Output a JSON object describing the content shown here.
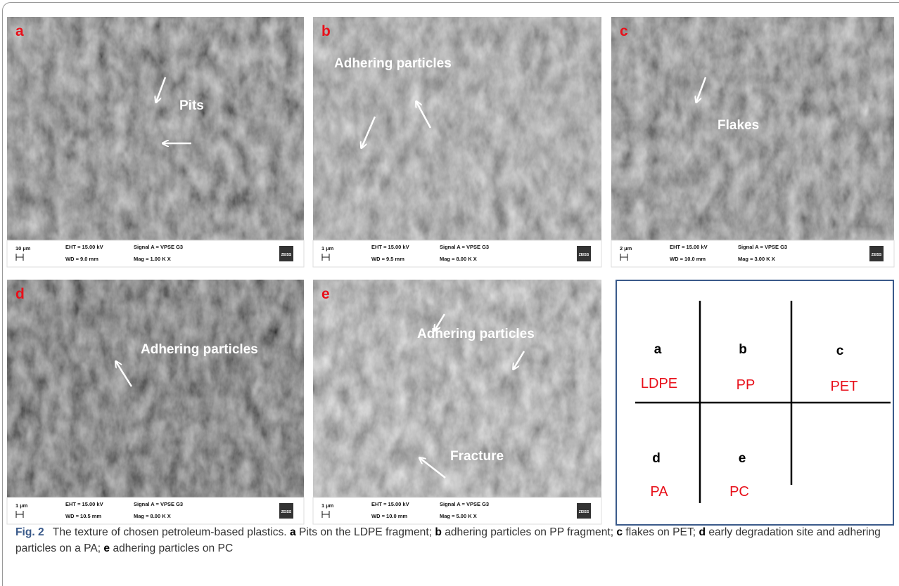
{
  "panels": [
    {
      "letter": "a",
      "annotations": [
        "Pits"
      ],
      "scale": "10 µm",
      "eht": "EHT = 15.00 kV",
      "wd": "WD =  9.0 mm",
      "signal": "Signal A = VPSE G3",
      "mag": "Mag =   1.00 K X",
      "logo": "ZEISS"
    },
    {
      "letter": "b",
      "annotations": [
        "Adhering particles"
      ],
      "scale": "1 µm",
      "eht": "EHT = 15.00 kV",
      "wd": "WD =  9.5 mm",
      "signal": "Signal A = VPSE G3",
      "mag": "Mag =   8.00 K X",
      "logo": "ZEISS"
    },
    {
      "letter": "c",
      "annotations": [
        "Flakes"
      ],
      "scale": "2 µm",
      "eht": "EHT = 15.00 kV",
      "wd": "WD = 10.0 mm",
      "signal": "Signal A = VPSE G3",
      "mag": "Mag =   3.00 K X",
      "logo": "ZEISS"
    },
    {
      "letter": "d",
      "annotations": [
        "Adhering particles"
      ],
      "scale": "1 µm",
      "eht": "EHT = 15.00 kV",
      "wd": "WD = 10.5 mm",
      "signal": "Signal A = VPSE G3",
      "mag": "Mag =   8.00 K X",
      "logo": "ZEISS"
    },
    {
      "letter": "e",
      "annotations": [
        "Adhering particles",
        "Fracture"
      ],
      "scale": "1 µm",
      "eht": "EHT = 15.00 kV",
      "wd": "WD = 10.0 mm",
      "signal": "Signal A = VPSE G3",
      "mag": "Mag =   5.00 K X",
      "logo": "ZEISS"
    }
  ],
  "legend": {
    "cells": [
      {
        "letter": "a",
        "material": "LDPE"
      },
      {
        "letter": "b",
        "material": "PP"
      },
      {
        "letter": "c",
        "material": "PET"
      },
      {
        "letter": "d",
        "material": "PA"
      },
      {
        "letter": "e",
        "material": "PC"
      }
    ]
  },
  "caption": {
    "label": "Fig. 2",
    "intro": "The texture of chosen petroleum-based plastics.",
    "items": [
      {
        "letter": "a",
        "text": "Pits on the LDPE fragment;"
      },
      {
        "letter": "b",
        "text": "adhering particles on PP fragment;"
      },
      {
        "letter": "c",
        "text": "flakes on PET;"
      },
      {
        "letter": "d",
        "text": "early degradation site and adhering particles on a PA;"
      },
      {
        "letter": "e",
        "text": "adhering particles on PC"
      }
    ]
  }
}
